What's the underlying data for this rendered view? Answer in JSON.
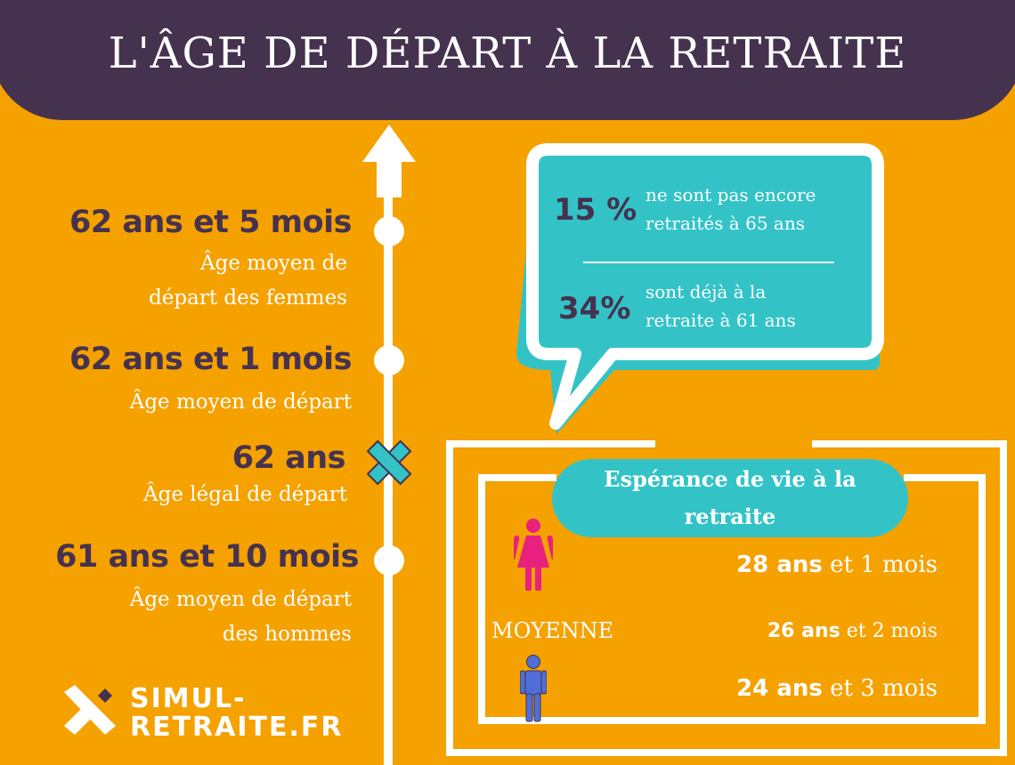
{
  "title": "L'ÂGE DE DÉPART À LA RETRAITE",
  "timeline": [
    {
      "value": "62 ans et 5 mois",
      "desc_line1": "Âge moyen de",
      "desc_line2": "départ des femmes"
    },
    {
      "value": "62 ans et 1 mois",
      "desc_line1": "Âge moyen de départ"
    },
    {
      "value": "62 ans",
      "desc_line1": "Âge légal de départ"
    },
    {
      "value": "61 ans et 10 mois",
      "desc_line1": "Âge moyen de départ",
      "desc_line2": "des hommes"
    }
  ],
  "bubble": {
    "stat1": {
      "value": "15 %",
      "line1": "ne sont pas encore",
      "line2": "retraités à 65 ans"
    },
    "stat2": {
      "value": "34%",
      "line1": "sont déjà à la",
      "line2": "retraite à 61 ans"
    }
  },
  "life_expectancy": {
    "title_line1": "Espérance de vie à la",
    "title_line2": "retraite",
    "women": {
      "bold": "28 ans",
      "rest": " et 1 mois"
    },
    "average_label": "MOYENNE",
    "average": {
      "bold": "26 ans",
      "rest": " et 2 mois"
    },
    "men": {
      "bold": "24 ans",
      "rest": " et 3 mois"
    }
  },
  "logo": {
    "line1": "SIMUL-",
    "line2": "RETRAITE.FR"
  },
  "colors": {
    "background": "#f5a100",
    "header": "#45324f",
    "teal": "#33c3c7",
    "women": "#e8217f",
    "men": "#4f6fd6"
  },
  "icons": [
    "arrow-up-icon",
    "cross-icon",
    "woman-icon",
    "man-icon",
    "logo-icon"
  ]
}
